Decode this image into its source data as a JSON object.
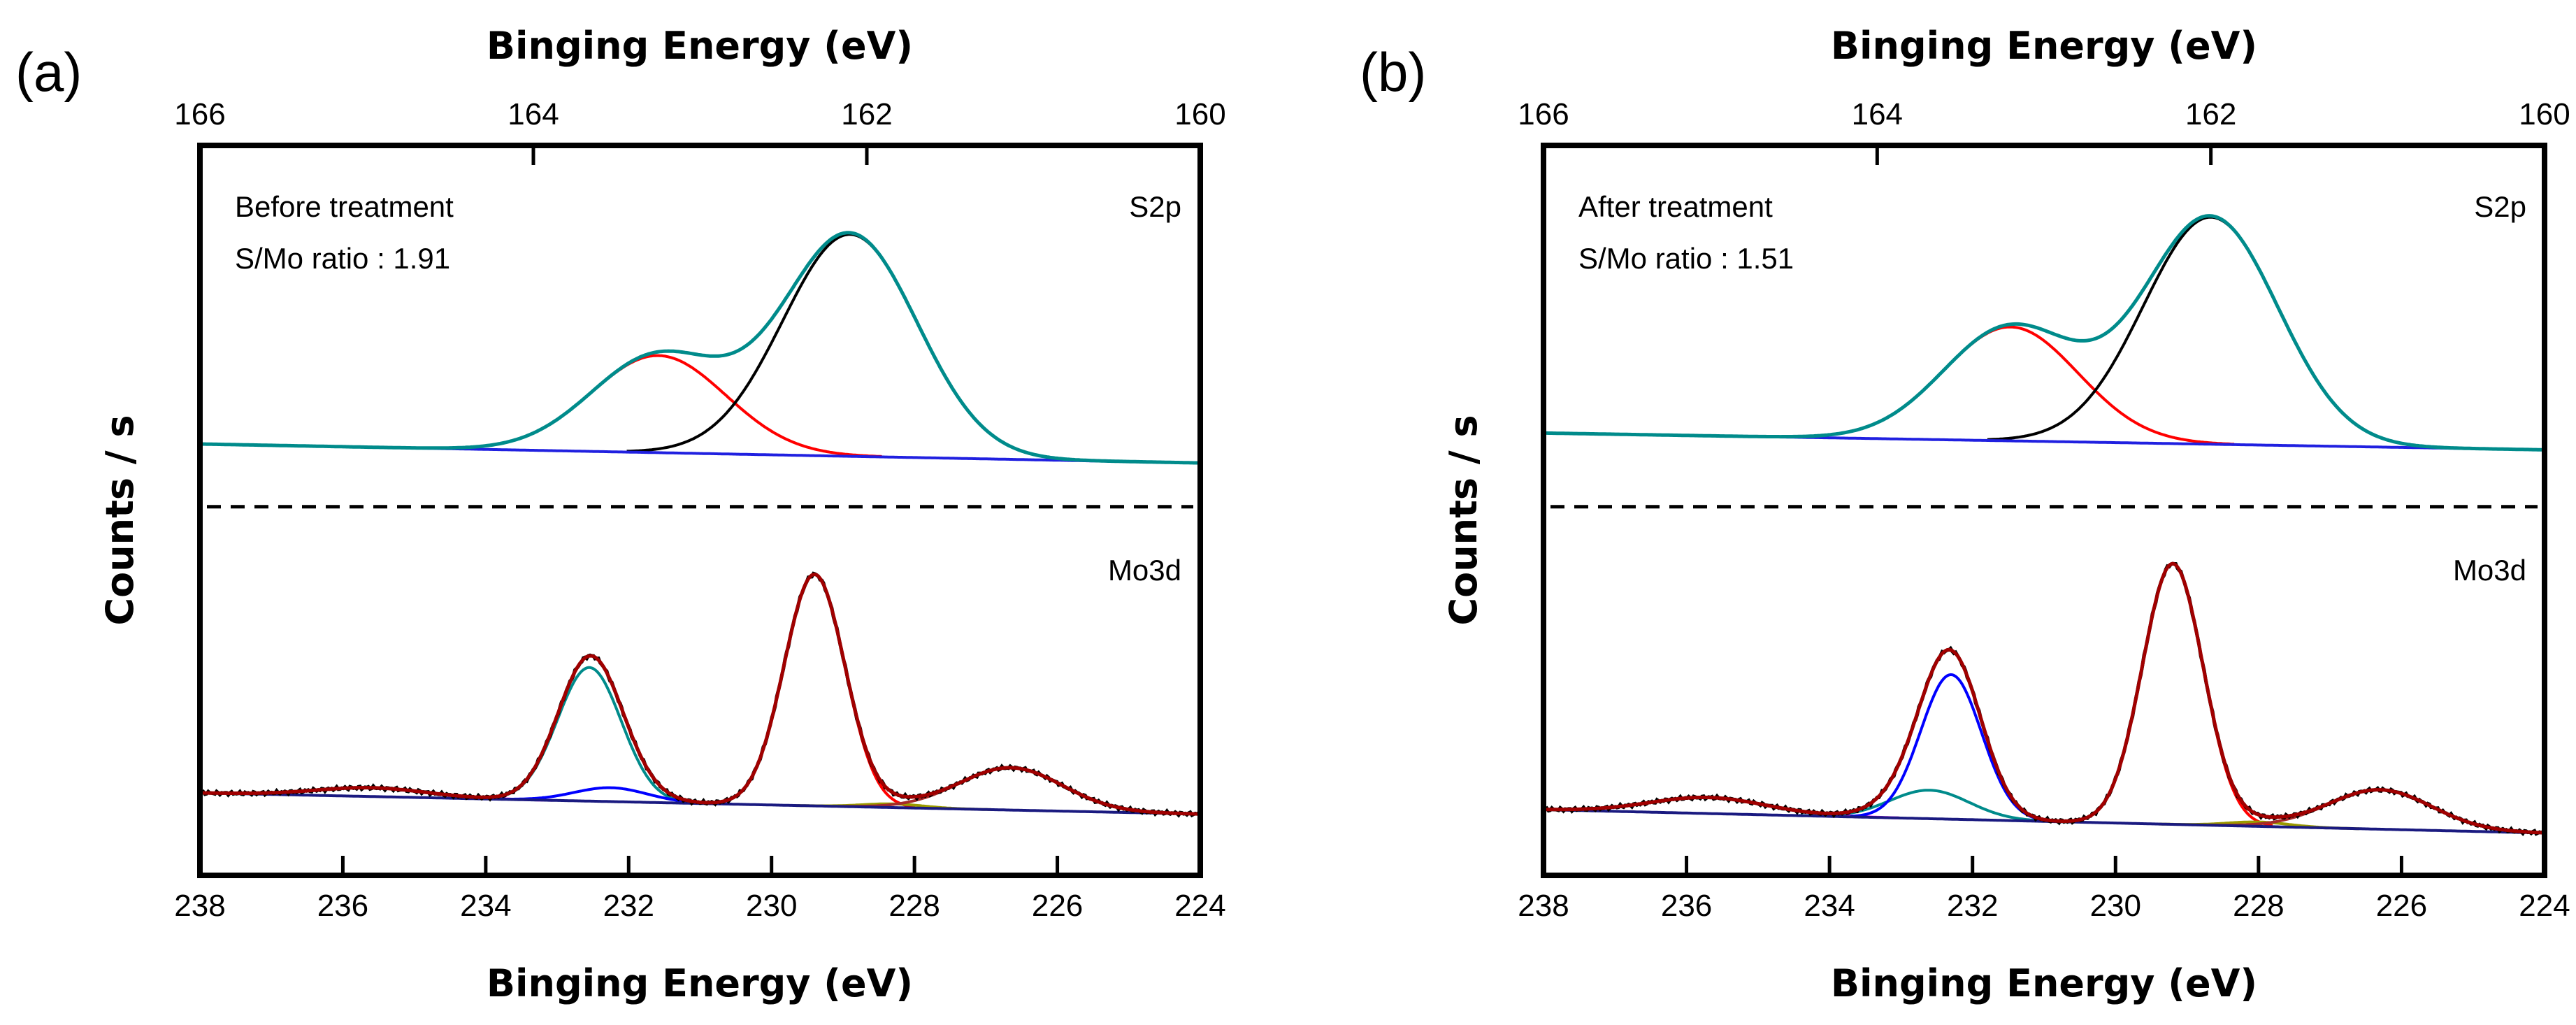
{
  "chart_data": [
    {
      "type": "line",
      "panel_label": "(a)",
      "top_xlabel": "Binging Energy (eV)",
      "xlabel": "Binging Energy (eV)",
      "ylabel": "Counts / s",
      "top_xlim": [
        166,
        160
      ],
      "top_ticks": [
        "166",
        "164",
        "162",
        "160"
      ],
      "xlim": [
        238,
        224
      ],
      "bottom_ticks": [
        "238",
        "236",
        "234",
        "232",
        "230",
        "228",
        "226",
        "224"
      ],
      "ylim": [
        0,
        100
      ],
      "grid": false,
      "separator_y": 50.5,
      "annotations": [
        "Before treatment",
        "S/Mo ratio : 1.91"
      ],
      "regions": [
        {
          "name": "S2p",
          "axis": "top",
          "baseline": [
            59.1,
            56.5
          ],
          "envelope_color": "#008b8b",
          "baseline_color": "#2020e0",
          "components": [
            {
              "center": 163.25,
              "height": 13.3,
              "fwhm": 0.95,
              "color": "#ff0000"
            },
            {
              "center": 162.1,
              "height": 30.4,
              "fwhm": 0.95,
              "color": "#000000"
            }
          ]
        },
        {
          "name": "Mo3d",
          "axis": "bottom",
          "baseline": [
            11.3,
            8.4
          ],
          "raw_color": "#000000",
          "envelope_color": "#a00000",
          "baseline_color": "#1a1a80",
          "components": [
            {
              "center": 235.6,
              "height": 1.2,
              "fwhm": 1.8,
              "color": "#ff00ff"
            },
            {
              "center": 232.55,
              "height": 18.3,
              "fwhm": 1.05,
              "color": "#008b8b"
            },
            {
              "center": 232.25,
              "height": 1.9,
              "fwhm": 1.2,
              "color": "#0000ff"
            },
            {
              "center": 229.4,
              "height": 31.7,
              "fwhm": 1.0,
              "color": "#ff0000"
            },
            {
              "center": 228.3,
              "height": 0.5,
              "fwhm": 1.0,
              "color": "#9a9a00"
            },
            {
              "center": 226.65,
              "height": 5.8,
              "fwhm": 1.7,
              "color": "#a52a2a"
            }
          ]
        }
      ]
    },
    {
      "type": "line",
      "panel_label": "(b)",
      "top_xlabel": "Binging Energy (eV)",
      "xlabel": "Binging Energy (eV)",
      "ylabel": "Counts / s",
      "top_xlim": [
        166,
        160
      ],
      "top_ticks": [
        "166",
        "164",
        "162",
        "160"
      ],
      "xlim": [
        238,
        224
      ],
      "bottom_ticks": [
        "238",
        "236",
        "234",
        "232",
        "230",
        "228",
        "226",
        "224"
      ],
      "ylim": [
        0,
        100
      ],
      "grid": false,
      "separator_y": 50.5,
      "annotations": [
        "After treatment",
        "S/Mo ratio : 1.51"
      ],
      "regions": [
        {
          "name": "S2p",
          "axis": "top",
          "baseline": [
            60.6,
            58.3
          ],
          "envelope_color": "#008b8b",
          "baseline_color": "#2020e0",
          "components": [
            {
              "center": 163.2,
              "height": 15.6,
              "fwhm": 0.95,
              "color": "#ff0000"
            },
            {
              "center": 162.0,
              "height": 31.1,
              "fwhm": 0.95,
              "color": "#000000"
            }
          ]
        },
        {
          "name": "Mo3d",
          "axis": "bottom",
          "baseline": [
            9.0,
            5.8
          ],
          "raw_color": "#000000",
          "envelope_color": "#a00000",
          "baseline_color": "#1a1a80",
          "components": [
            {
              "center": 235.7,
              "height": 2.2,
              "fwhm": 1.9,
              "color": "#ff00ff"
            },
            {
              "center": 232.6,
              "height": 3.9,
              "fwhm": 1.3,
              "color": "#008b8b"
            },
            {
              "center": 232.3,
              "height": 19.8,
              "fwhm": 1.0,
              "color": "#0000ff"
            },
            {
              "center": 229.2,
              "height": 35.7,
              "fwhm": 1.0,
              "color": "#ff0000"
            },
            {
              "center": 228.0,
              "height": 0.6,
              "fwhm": 1.0,
              "color": "#9a9a00"
            },
            {
              "center": 226.3,
              "height": 5.4,
              "fwhm": 1.7,
              "color": "#a52a2a"
            }
          ]
        }
      ]
    }
  ]
}
